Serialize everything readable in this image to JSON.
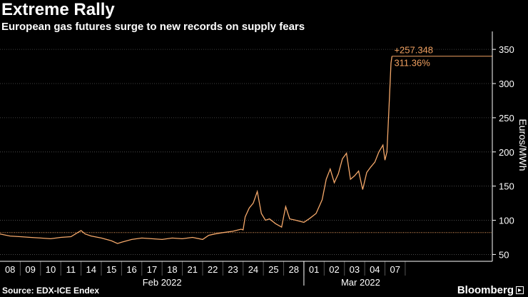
{
  "title": "Extreme Rally",
  "subtitle": "European gas futures surge to new records on supply fears",
  "source": "Source: EDX-ICE Endex",
  "brand": "Bloomberg",
  "colors": {
    "line": "#f5a86a",
    "label": "#f0a060",
    "grid": "#555555",
    "axis": "#ffffff",
    "background": "#000000"
  },
  "chart_data": {
    "type": "line",
    "ylabel": "Euros/MWh",
    "ylim": [
      40,
      370
    ],
    "yticks": [
      50,
      100,
      150,
      200,
      250,
      300,
      350
    ],
    "ytick_labels": [
      "50",
      "100",
      "150",
      "200",
      "250",
      "300",
      "350"
    ],
    "xlim": [
      0,
      24.3
    ],
    "xticks": [
      {
        "pos": 0.5,
        "label": "08"
      },
      {
        "pos": 1.5,
        "label": "09"
      },
      {
        "pos": 2.5,
        "label": "10"
      },
      {
        "pos": 3.5,
        "label": "11"
      },
      {
        "pos": 4.5,
        "label": "14"
      },
      {
        "pos": 5.5,
        "label": "15"
      },
      {
        "pos": 6.5,
        "label": "16"
      },
      {
        "pos": 7.5,
        "label": "17"
      },
      {
        "pos": 8.5,
        "label": "18"
      },
      {
        "pos": 9.5,
        "label": "21"
      },
      {
        "pos": 10.5,
        "label": "22"
      },
      {
        "pos": 11.5,
        "label": "23"
      },
      {
        "pos": 12.5,
        "label": "24"
      },
      {
        "pos": 13.5,
        "label": "25"
      },
      {
        "pos": 14.5,
        "label": "28"
      },
      {
        "pos": 15.5,
        "label": "01"
      },
      {
        "pos": 16.5,
        "label": "02"
      },
      {
        "pos": 17.5,
        "label": "03"
      },
      {
        "pos": 18.5,
        "label": "04"
      },
      {
        "pos": 19.5,
        "label": "07"
      }
    ],
    "day_separators": [
      1,
      2,
      3,
      4,
      5,
      6,
      7,
      8,
      9,
      10,
      11,
      12,
      13,
      14,
      15,
      16,
      17,
      18,
      19,
      20
    ],
    "month_separator": 15,
    "months": [
      {
        "center": 8,
        "label": "Feb 2022"
      },
      {
        "center": 17.8,
        "label": "Mar 2022"
      }
    ],
    "baseline": 82.0,
    "last_value": 340.0,
    "annotations": {
      "change": "+257.348",
      "pct": "311.36%"
    },
    "series": [
      {
        "name": "European gas futures",
        "x": [
          0,
          0.5,
          1,
          1.5,
          2,
          2.5,
          3,
          3.5,
          4,
          4.2,
          4.5,
          5,
          5.5,
          5.8,
          6,
          6.5,
          7,
          7.5,
          8,
          8.5,
          9,
          9.5,
          10,
          10.3,
          10.6,
          11,
          11.5,
          11.9,
          12,
          12.1,
          12.3,
          12.5,
          12.7,
          12.9,
          13.1,
          13.3,
          13.6,
          13.9,
          14,
          14.1,
          14.3,
          14.6,
          15,
          15.3,
          15.6,
          15.9,
          16.1,
          16.3,
          16.5,
          16.7,
          16.9,
          17.1,
          17.3,
          17.5,
          17.7,
          17.9,
          18.1,
          18.3,
          18.5,
          18.7,
          18.9,
          19.0,
          19.1,
          19.2,
          19.3,
          19.35
        ],
        "y": [
          80,
          77,
          76,
          75,
          74,
          73,
          75,
          76,
          85,
          80,
          77,
          74,
          70,
          66,
          68,
          72,
          74,
          73,
          72,
          74,
          73,
          75,
          72,
          78,
          80,
          82,
          84,
          87,
          86,
          105,
          118,
          125,
          142,
          110,
          100,
          102,
          95,
          90,
          105,
          120,
          102,
          100,
          97,
          103,
          110,
          130,
          160,
          175,
          155,
          168,
          190,
          198,
          160,
          165,
          172,
          145,
          170,
          178,
          185,
          200,
          210,
          188,
          200,
          265,
          330,
          340
        ]
      }
    ]
  }
}
